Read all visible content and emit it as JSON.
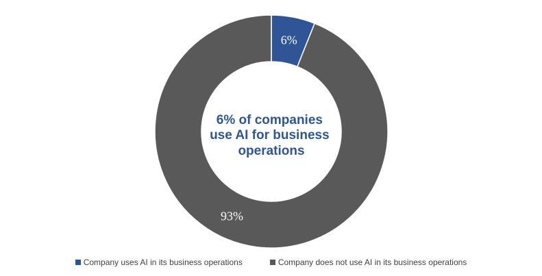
{
  "chart_data": {
    "type": "pie",
    "subtype": "donut",
    "center_label": [
      "6% of companies",
      "use AI for business",
      "operations"
    ],
    "slices": [
      {
        "name": "Company uses AI in its business operations",
        "value": 6,
        "label": "6%",
        "color": "#2f5597"
      },
      {
        "name": "Company does not use AI in its business operations",
        "value": 93,
        "label": "93%",
        "color": "#595959"
      }
    ],
    "legend": {
      "placement": "bottom"
    },
    "colors": {
      "center_text": "#2f5597",
      "slice_border": "#ffffff",
      "background": "#ffffff"
    }
  }
}
